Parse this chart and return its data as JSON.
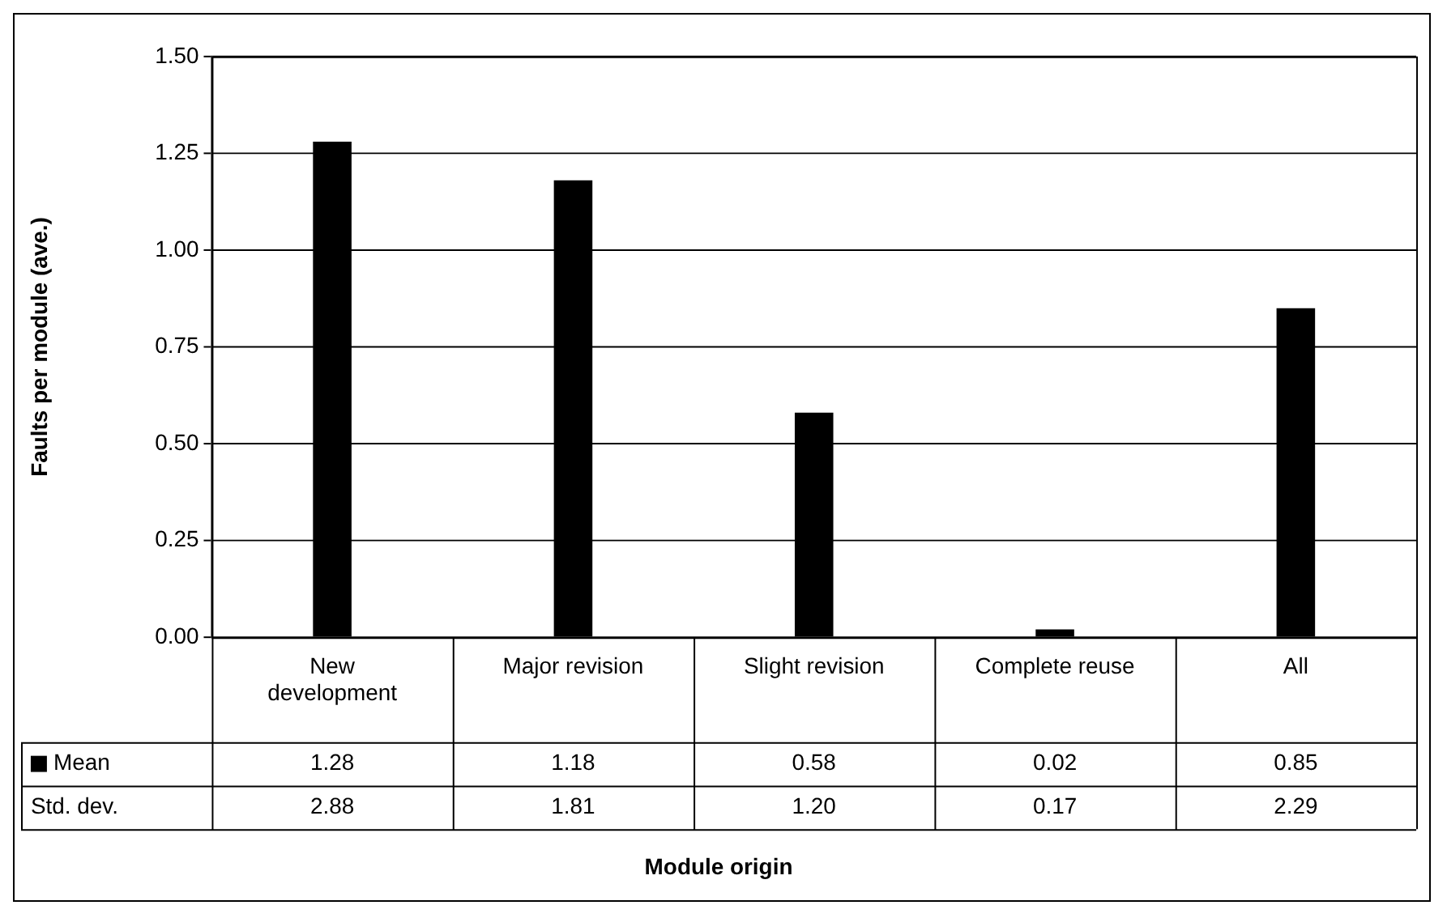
{
  "chart_data": {
    "type": "bar",
    "ylabel": "Faults per module (ave.)",
    "categories": [
      "New development",
      "Major revision",
      "Slight revision",
      "Complete reuse",
      "All"
    ],
    "series": [
      {
        "name": "Mean",
        "color": "#000000",
        "values": [
          1.28,
          1.18,
          0.58,
          0.02,
          0.85
        ],
        "value_labels": [
          "1.28",
          "1.18",
          "0.58",
          "0.02",
          "0.85"
        ]
      }
    ],
    "annotations": [
      "Std. dev.",
      "2.88",
      "1.81",
      "1.20",
      "0.17",
      "2.29",
      "Module origin"
    ],
    "ylim": [
      0,
      1.5
    ],
    "yticks": [
      {
        "value": 0,
        "label": "0.00"
      },
      {
        "value": 0.25,
        "label": "0.25"
      },
      {
        "value": 0.5,
        "label": "0.50"
      },
      {
        "value": 0.75,
        "label": "0.75"
      },
      {
        "value": 1,
        "label": "1.00"
      },
      {
        "value": 1.25,
        "label": "1.25"
      },
      {
        "value": 1.5,
        "label": "1.50"
      }
    ],
    "grid": "y"
  }
}
